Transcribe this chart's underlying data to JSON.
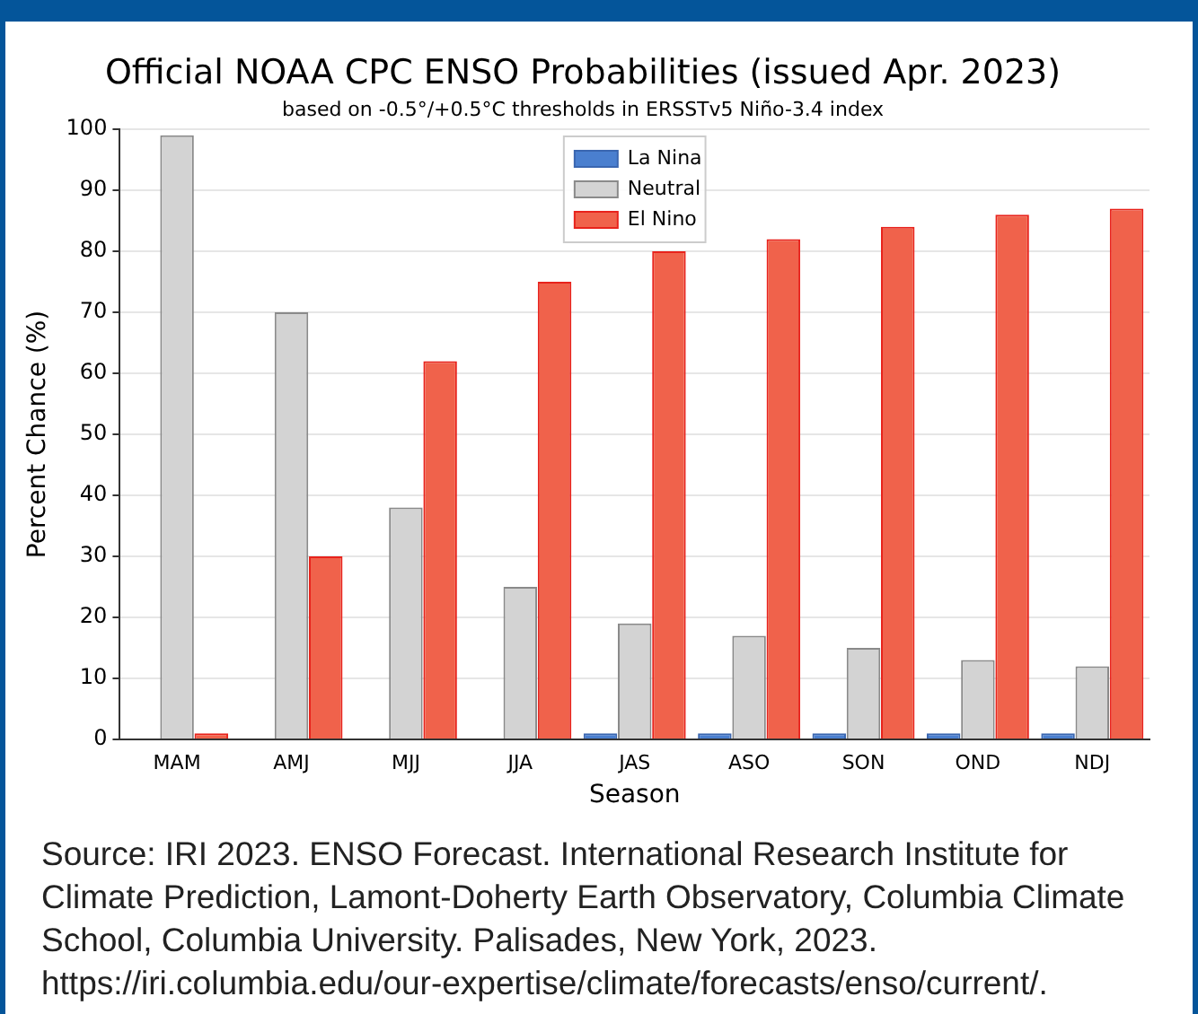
{
  "chart_data": {
    "type": "bar",
    "title": "Official NOAA CPC ENSO Probabilities (issued Apr. 2023)",
    "subtitle": "based on -0.5°/+0.5°C thresholds in ERSSTv5 Niño-3.4 index",
    "xlabel": "Season",
    "ylabel": "Percent Chance (%)",
    "categories": [
      "MAM",
      "AMJ",
      "MJJ",
      "JJA",
      "JAS",
      "ASO",
      "SON",
      "OND",
      "NDJ"
    ],
    "series": [
      {
        "name": "La Nina",
        "color": "#4a7fcf",
        "values": [
          0,
          0,
          0,
          0,
          1,
          1,
          1,
          1,
          1
        ]
      },
      {
        "name": "Neutral",
        "color": "#d3d3d3",
        "values": [
          99,
          70,
          38,
          25,
          19,
          17,
          15,
          13,
          12
        ]
      },
      {
        "name": "El Nino",
        "color": "#f0624b",
        "values": [
          1,
          30,
          62,
          75,
          80,
          82,
          84,
          86,
          87
        ]
      }
    ],
    "ylim": [
      0,
      100
    ],
    "yticks": [
      0,
      10,
      20,
      30,
      40,
      50,
      60,
      70,
      80,
      90,
      100
    ],
    "grid": "y",
    "legend": "top center",
    "annotations": [
      "Source:  IRI 2023. ENSO Forecast. International Research Institute for Climate Prediction, Lamont-Doherty Earth Observatory, Columbia Climate School, Columbia University. Palisades, New York, 2023.  https://iri.columbia.edu/our-expertise/climate/forecasts/enso/current/."
    ]
  }
}
